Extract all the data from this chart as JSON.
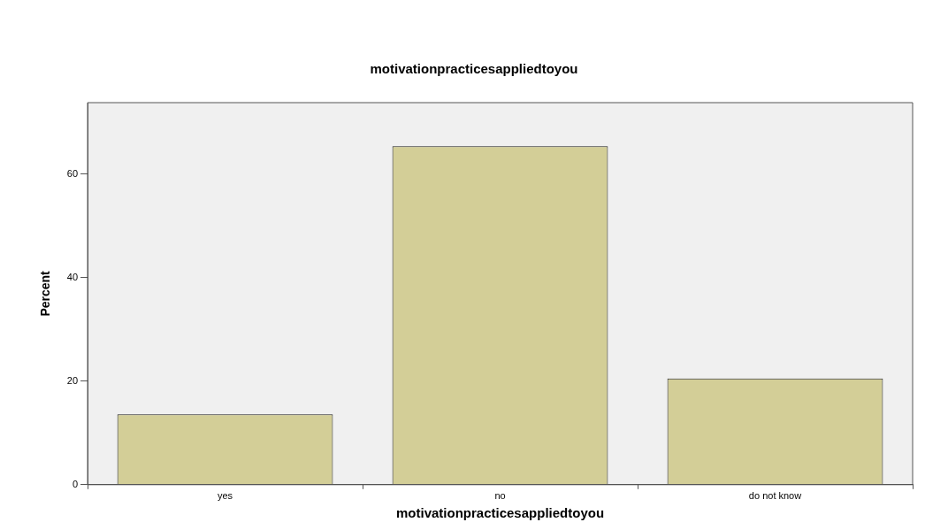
{
  "chart_data": {
    "type": "bar",
    "title": "motivationpracticesappliedtoyou",
    "xlabel": "motivationpracticesappliedtoyou",
    "ylabel": "Percent",
    "categories": [
      "yes",
      "no",
      "do not know"
    ],
    "values": [
      13.6,
      65.4,
      20.5
    ],
    "color": "#d3ce97",
    "ylim": [
      0,
      73.8
    ],
    "yticks": [
      0,
      20,
      40,
      60
    ],
    "grid": false,
    "legend": false
  }
}
